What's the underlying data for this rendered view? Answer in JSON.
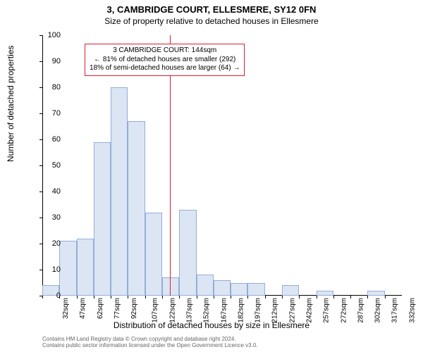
{
  "title_main": "3, CAMBRIDGE COURT, ELLESMERE, SY12 0FN",
  "title_sub": "Size of property relative to detached houses in Ellesmere",
  "y_label": "Number of detached properties",
  "x_label": "Distribution of detached houses by size in Ellesmere",
  "annotation": {
    "line1": "3 CAMBRIDGE COURT: 144sqm",
    "line2": "← 81% of detached houses are smaller (292)",
    "line3": "18% of semi-detached houses are larger (64) →"
  },
  "footer_line1": "Contains HM Land Registry data © Crown copyright and database right 2024.",
  "footer_line2": "Contains public sector information licensed under the Open Government Licence v3.0.",
  "chart": {
    "type": "histogram",
    "ylim": [
      0,
      100
    ],
    "ytick_step": 10,
    "xlim_labels": [
      "32sqm",
      "47sqm",
      "62sqm",
      "77sqm",
      "92sqm",
      "107sqm",
      "122sqm",
      "137sqm",
      "152sqm",
      "167sqm",
      "182sqm",
      "197sqm",
      "212sqm",
      "227sqm",
      "242sqm",
      "257sqm",
      "272sqm",
      "287sqm",
      "302sqm",
      "317sqm",
      "332sqm"
    ],
    "values": [
      4,
      21,
      22,
      59,
      80,
      67,
      32,
      7,
      33,
      8,
      6,
      5,
      5,
      0,
      4,
      0,
      2,
      0,
      0,
      2,
      0
    ],
    "bar_color": "#dbe5f4",
    "bar_border_color": "#94aed6",
    "vline_color": "#d81e2c",
    "vline_x_sqm": 144,
    "background_color": "#ffffff",
    "axis_color": "#000000",
    "title_fontsize": 13,
    "label_fontsize": 12,
    "tick_fontsize": 10
  }
}
